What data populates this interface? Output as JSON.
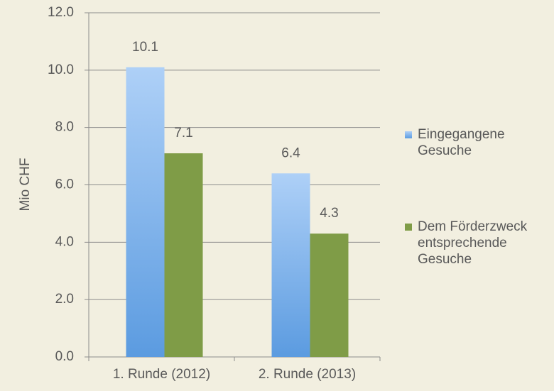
{
  "chart_data": {
    "type": "bar",
    "categories": [
      "1. Runde (2012)",
      "2. Runde (2013)"
    ],
    "series": [
      {
        "name": "Eingegangene Gesuche",
        "color": "#5b9be0",
        "values": [
          10.1,
          6.4
        ]
      },
      {
        "name": "Dem Förderzweck entsprechende Gesuche",
        "color": "#7f9c47",
        "values": [
          7.1,
          4.3
        ]
      }
    ],
    "y_label": "Mio CHF",
    "ylim": [
      0,
      12
    ],
    "yticks": [
      {
        "value": 0,
        "label": "0.0"
      },
      {
        "value": 2,
        "label": "2.0"
      },
      {
        "value": 4,
        "label": "4.0"
      },
      {
        "value": 6,
        "label": "6.0"
      },
      {
        "value": 8,
        "label": "8.0"
      },
      {
        "value": 10,
        "label": "10.0"
      },
      {
        "value": 12,
        "label": "12.0"
      }
    ],
    "grid": true
  }
}
